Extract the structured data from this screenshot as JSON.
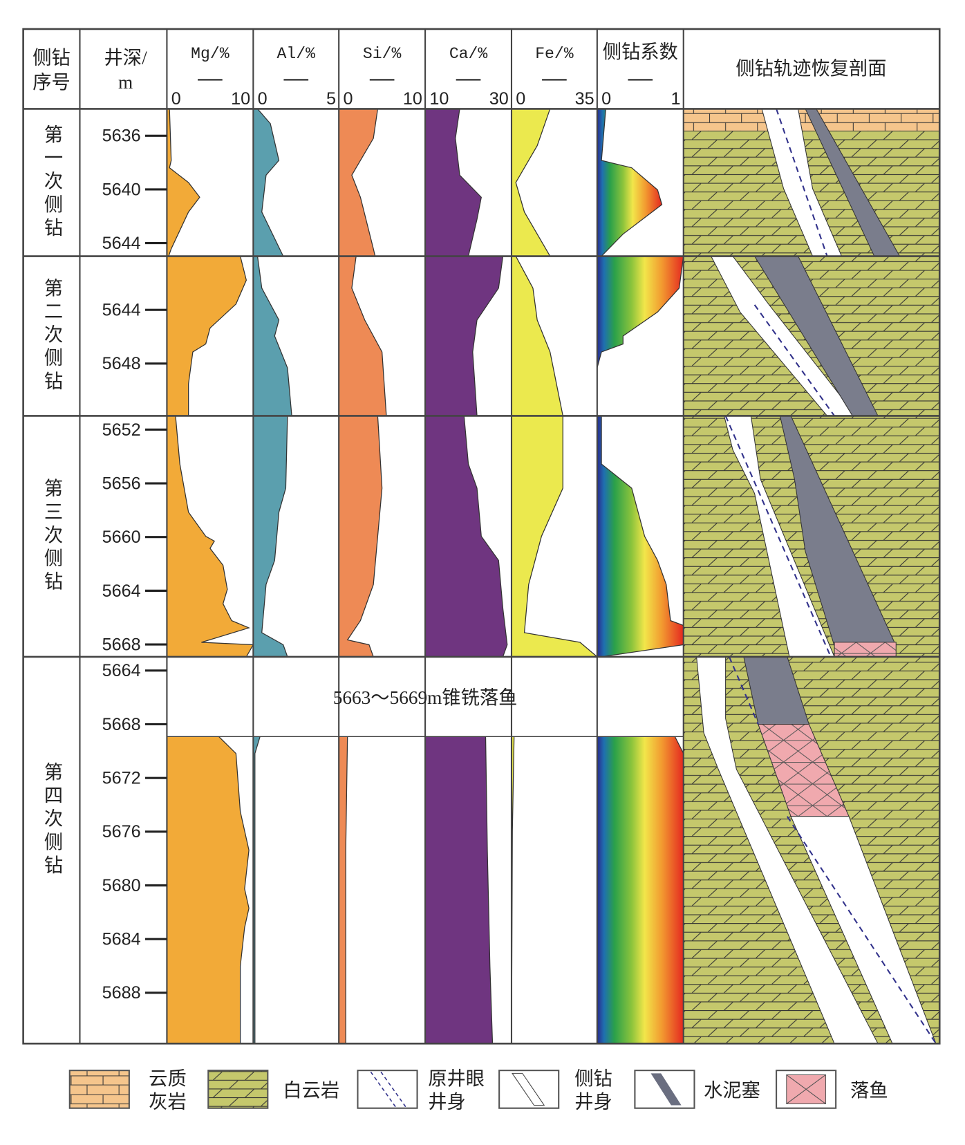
{
  "header": {
    "sequence": [
      "侧钻",
      "序号"
    ],
    "depth": [
      "井深/",
      "m"
    ],
    "profile": "侧钻轨迹恢复剖面",
    "logs": [
      {
        "name": "Mg/%",
        "min": 0,
        "max": 10
      },
      {
        "name": "Al/%",
        "min": 0,
        "max": 5
      },
      {
        "name": "Si/%",
        "min": 0,
        "max": 10
      },
      {
        "name": "Ca/%",
        "min": 10,
        "max": 30
      },
      {
        "name": "Fe/%",
        "min": 0,
        "max": 35
      },
      {
        "name": "侧钻系数",
        "min": 0,
        "max": 1
      }
    ]
  },
  "sections": [
    {
      "label": "第一次侧钻",
      "depth_ticks": [
        5636,
        5640,
        5644
      ]
    },
    {
      "label": "第二次侧钻",
      "depth_ticks": [
        5644,
        5648
      ]
    },
    {
      "label": "第三次侧钻",
      "depth_ticks": [
        5652,
        5656,
        5660,
        5664,
        5668
      ]
    },
    {
      "label": "第四次侧钻",
      "depth_ticks": [
        5664,
        5668,
        5672,
        5676,
        5680,
        5684,
        5688
      ],
      "note": "5663～5669m锥铣落鱼"
    }
  ],
  "legend": [
    {
      "label": [
        "云质",
        "灰岩"
      ]
    },
    {
      "label": [
        "白云岩"
      ]
    },
    {
      "label": [
        "原井眼",
        "井身"
      ]
    },
    {
      "label": [
        "侧钻",
        "井身"
      ]
    },
    {
      "label": [
        "水泥塞"
      ]
    },
    {
      "label": [
        "落鱼"
      ]
    }
  ]
}
